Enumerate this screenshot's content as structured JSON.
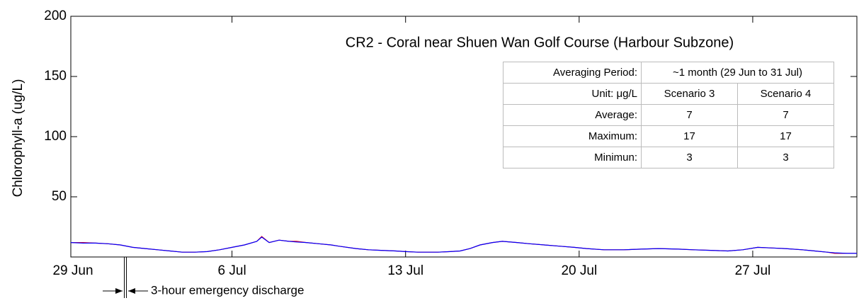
{
  "chart_data": {
    "type": "line",
    "title": "CR2 - Coral near Shuen Wan Golf Course (Harbour Subzone)",
    "y_label": "Chlorophyll-a (ug/L)",
    "xlim": [
      0.5,
      32.2
    ],
    "xticks": [
      {
        "value": 0,
        "label": "29 Jun"
      },
      {
        "value": 7,
        "label": "6 Jul"
      },
      {
        "value": 14,
        "label": "13 Jul"
      },
      {
        "value": 21,
        "label": "20 Jul"
      },
      {
        "value": 28,
        "label": "27 Jul"
      }
    ],
    "ylim": [
      0,
      200
    ],
    "yticks": [
      50,
      100,
      150,
      200
    ],
    "x": [
      0.5,
      1,
      1.5,
      2,
      2.5,
      3,
      3.5,
      4,
      4.5,
      5,
      5.5,
      6,
      6.5,
      7,
      7.5,
      8,
      8.2,
      8.5,
      8.9,
      9.3,
      9.6,
      10,
      10.5,
      11,
      11.3,
      12,
      12.5,
      13,
      13.6,
      14,
      14.5,
      15,
      15.3,
      15.8,
      16.2,
      16.6,
      17,
      17.5,
      17.9,
      18.5,
      19,
      19.6,
      20.2,
      20.8,
      21.3,
      22,
      22.8,
      23.5,
      24.2,
      25,
      25.6,
      26.3,
      27,
      27.6,
      28.2,
      28.8,
      29.3,
      30,
      30.5,
      31,
      31.3,
      31.8,
      32.2
    ],
    "series": [
      {
        "name": "Scenario 3",
        "color": "#ff0000",
        "values": [
          12,
          12,
          11.5,
          11,
          10,
          8,
          7,
          6,
          5,
          4,
          4,
          4.5,
          6,
          8,
          10,
          13,
          17,
          12,
          14,
          13,
          13,
          12,
          11,
          10,
          9,
          7,
          6,
          5.5,
          5,
          4.5,
          4,
          4,
          4,
          4.5,
          5,
          7,
          10,
          12,
          13,
          12,
          11,
          10,
          9,
          8,
          7,
          6,
          6,
          6.5,
          7,
          6.5,
          6,
          5.5,
          5,
          6,
          8,
          7.5,
          7,
          6,
          5,
          4,
          3,
          3,
          3
        ]
      },
      {
        "name": "Scenario 4",
        "color": "#0000ff",
        "values": [
          12,
          11.5,
          11.5,
          11,
          10,
          8,
          7,
          6,
          5,
          4,
          4,
          4.5,
          6,
          8,
          10,
          13,
          16.5,
          12,
          14,
          13,
          12.5,
          12,
          11,
          10,
          9,
          7,
          6,
          5.5,
          5,
          4.5,
          4,
          4,
          4,
          4.5,
          5,
          7,
          10,
          12,
          13,
          12,
          11,
          10,
          9,
          8,
          7,
          6,
          6,
          6.5,
          7,
          6.5,
          6,
          5.5,
          5,
          6,
          8,
          7.5,
          7,
          6,
          5,
          4,
          3.5,
          3,
          3
        ]
      }
    ],
    "annotation": {
      "text": "3-hour emergency discharge",
      "x": 2.7
    },
    "table": {
      "period_label": "Averaging Period:",
      "period": "~1 month (29 Jun to 31 Jul)",
      "unit_label": "Unit: μg/L",
      "rows": [
        [
          "Average:",
          7,
          7
        ],
        [
          "Maximum:",
          17,
          17
        ],
        [
          "Minimun:",
          3,
          3
        ]
      ]
    }
  }
}
